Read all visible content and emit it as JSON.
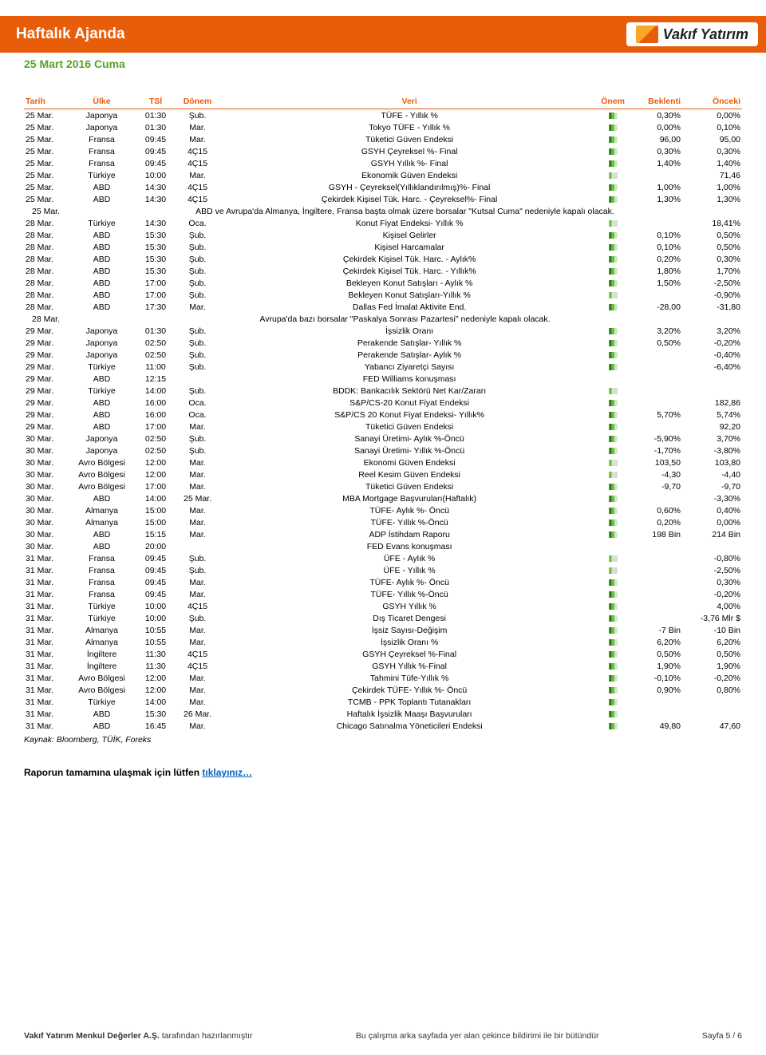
{
  "header": {
    "title": "Haftalık Ajanda",
    "logo_text": "Vakıf Yatırım"
  },
  "sub_date": "25 Mart 2016 Cuma",
  "columns": {
    "tarih": "Tarih",
    "ulke": "Ülke",
    "tsi": "TSİ",
    "donem": "Dönem",
    "veri": "Veri",
    "onem": "Önem",
    "beklenti": "Beklenti",
    "onceki": "Önceki"
  },
  "flag_colors": {
    "low": {
      "a": "#cfe8cf",
      "b": "#d8d8d8",
      "c": "#d8d8d8"
    },
    "mid": {
      "a": "#6fbf3a",
      "b": "#cfe8cf",
      "c": "#d8d8d8"
    },
    "high": {
      "a": "#2e7d20",
      "b": "#6fbf3a",
      "c": "#cfe8cf"
    }
  },
  "rows": [
    {
      "t": "25 Mar.",
      "u": "Japonya",
      "s": "01:30",
      "d": "Şub.",
      "v": "TÜFE - Yıllık %",
      "o": "high",
      "b": "0,30%",
      "p": "0,00%"
    },
    {
      "t": "25 Mar.",
      "u": "Japonya",
      "s": "01:30",
      "d": "Mar.",
      "v": "Tokyo TÜFE - Yıllık %",
      "o": "high",
      "b": "0,00%",
      "p": "0,10%"
    },
    {
      "t": "25 Mar.",
      "u": "Fransa",
      "s": "09:45",
      "d": "Mar.",
      "v": "Tüketici Güven Endeksi",
      "o": "high",
      "b": "96,00",
      "p": "95,00"
    },
    {
      "t": "25 Mar.",
      "u": "Fransa",
      "s": "09:45",
      "d": "4Ç15",
      "v": "GSYH Çeyreksel %- Final",
      "o": "high",
      "b": "0,30%",
      "p": "0,30%"
    },
    {
      "t": "25 Mar.",
      "u": "Fransa",
      "s": "09:45",
      "d": "4Ç15",
      "v": "GSYH Yıllık %- Final",
      "o": "high",
      "b": "1,40%",
      "p": "1,40%"
    },
    {
      "t": "25 Mar.",
      "u": "Türkiye",
      "s": "10:00",
      "d": "Mar.",
      "v": "Ekonomik Güven Endeksi",
      "o": "mid",
      "b": "",
      "p": "71,46"
    },
    {
      "t": "25 Mar.",
      "u": "ABD",
      "s": "14:30",
      "d": "4Ç15",
      "v": "GSYH - Çeyreksel(Yıllıklandırılmış)%- Final",
      "o": "high",
      "b": "1,00%",
      "p": "1,00%"
    },
    {
      "t": "25 Mar.",
      "u": "ABD",
      "s": "14:30",
      "d": "4Ç15",
      "v": "Çekirdek Kişisel Tük. Harc. - Çeyreksel%- Final",
      "o": "high",
      "b": "1,30%",
      "p": "1,30%"
    },
    {
      "type": "note",
      "t": "25 Mar.",
      "text": "ABD ve Avrupa'da Almanya, İngiltere, Fransa başta olmak üzere borsalar \"Kutsal Cuma\" nedeniyle kapalı olacak."
    },
    {
      "t": "28 Mar.",
      "u": "Türkiye",
      "s": "14:30",
      "d": "Oca.",
      "v": "Konut Fiyat Endeksi- Yıllık %",
      "o": "mid",
      "b": "",
      "p": "18,41%"
    },
    {
      "t": "28 Mar.",
      "u": "ABD",
      "s": "15:30",
      "d": "Şub.",
      "v": "Kişisel Gelirler",
      "o": "high",
      "b": "0,10%",
      "p": "0,50%"
    },
    {
      "t": "28 Mar.",
      "u": "ABD",
      "s": "15:30",
      "d": "Şub.",
      "v": "Kişisel Harcamalar",
      "o": "high",
      "b": "0,10%",
      "p": "0,50%"
    },
    {
      "t": "28 Mar.",
      "u": "ABD",
      "s": "15:30",
      "d": "Şub.",
      "v": "Çekirdek Kişisel Tük. Harc. - Aylık%",
      "o": "high",
      "b": "0,20%",
      "p": "0,30%"
    },
    {
      "t": "28 Mar.",
      "u": "ABD",
      "s": "15:30",
      "d": "Şub.",
      "v": "Çekirdek Kişisel Tük. Harc. - Yıllık%",
      "o": "high",
      "b": "1,80%",
      "p": "1,70%"
    },
    {
      "t": "28 Mar.",
      "u": "ABD",
      "s": "17:00",
      "d": "Şub.",
      "v": "Bekleyen Konut Satışları - Aylık %",
      "o": "high",
      "b": "1,50%",
      "p": "-2,50%"
    },
    {
      "t": "28 Mar.",
      "u": "ABD",
      "s": "17:00",
      "d": "Şub.",
      "v": "Bekleyen Konut Satışları-Yıllık %",
      "o": "mid",
      "b": "",
      "p": "-0,90%"
    },
    {
      "t": "28 Mar.",
      "u": "ABD",
      "s": "17:30",
      "d": "Mar.",
      "v": "Dallas Fed İmalat Aktivite End.",
      "o": "high",
      "b": "-28,00",
      "p": "-31,80"
    },
    {
      "type": "note",
      "t": "28 Mar.",
      "text": "Avrupa'da bazı borsalar \"Paskalya Sonrası Pazartesi\" nedeniyle kapalı olacak."
    },
    {
      "t": "29 Mar.",
      "u": "Japonya",
      "s": "01:30",
      "d": "Şub.",
      "v": "İşsizlik Oranı",
      "o": "high",
      "b": "3,20%",
      "p": "3,20%"
    },
    {
      "t": "29 Mar.",
      "u": "Japonya",
      "s": "02:50",
      "d": "Şub.",
      "v": "Perakende Satışlar- Yıllık %",
      "o": "high",
      "b": "0,50%",
      "p": "-0,20%"
    },
    {
      "t": "29 Mar.",
      "u": "Japonya",
      "s": "02:50",
      "d": "Şub.",
      "v": "Perakende Satışlar- Aylık %",
      "o": "high",
      "b": "",
      "p": "-0,40%"
    },
    {
      "t": "29 Mar.",
      "u": "Türkiye",
      "s": "11:00",
      "d": "Şub.",
      "v": "Yabancı Ziyaretçi Sayısı",
      "o": "high",
      "b": "",
      "p": "-6,40%"
    },
    {
      "t": "29 Mar.",
      "u": "ABD",
      "s": "12:15",
      "d": "",
      "v": "FED Williams konuşması",
      "o": "",
      "b": "",
      "p": ""
    },
    {
      "t": "29 Mar.",
      "u": "Türkiye",
      "s": "14:00",
      "d": "Şub.",
      "v": "BDDK: Bankacılık Sektörü Net Kar/Zararı",
      "o": "mid",
      "b": "",
      "p": ""
    },
    {
      "t": "29 Mar.",
      "u": "ABD",
      "s": "16:00",
      "d": "Oca.",
      "v": "S&P/CS-20 Konut Fiyat Endeksi",
      "o": "high",
      "b": "",
      "p": "182,86"
    },
    {
      "t": "29 Mar.",
      "u": "ABD",
      "s": "16:00",
      "d": "Oca.",
      "v": "S&P/CS 20 Konut Fiyat Endeksi- Yıllık%",
      "o": "high",
      "b": "5,70%",
      "p": "5,74%"
    },
    {
      "t": "29 Mar.",
      "u": "ABD",
      "s": "17:00",
      "d": "Mar.",
      "v": "Tüketici Güven Endeksi",
      "o": "high",
      "b": "",
      "p": "92,20"
    },
    {
      "t": "30 Mar.",
      "u": "Japonya",
      "s": "02:50",
      "d": "Şub.",
      "v": "Sanayi Üretimi- Aylık %-Öncü",
      "o": "high",
      "b": "-5,90%",
      "p": "3,70%"
    },
    {
      "t": "30 Mar.",
      "u": "Japonya",
      "s": "02:50",
      "d": "Şub.",
      "v": "Sanayi Üretimi- Yıllık %-Öncü",
      "o": "high",
      "b": "-1,70%",
      "p": "-3,80%"
    },
    {
      "t": "30 Mar.",
      "u": "Avro Bölgesi",
      "s": "12:00",
      "d": "Mar.",
      "v": "Ekonomi Güven Endeksi",
      "o": "mid",
      "b": "103,50",
      "p": "103,80"
    },
    {
      "t": "30 Mar.",
      "u": "Avro Bölgesi",
      "s": "12:00",
      "d": "Mar.",
      "v": "Reel Kesim Güven Endeksi",
      "o": "mid",
      "b": "-4,30",
      "p": "-4,40"
    },
    {
      "t": "30 Mar.",
      "u": "Avro Bölgesi",
      "s": "17:00",
      "d": "Mar.",
      "v": "Tüketici Güven Endeksi",
      "o": "high",
      "b": "-9,70",
      "p": "-9,70"
    },
    {
      "t": "30 Mar.",
      "u": "ABD",
      "s": "14:00",
      "d": "25 Mar.",
      "v": "MBA Mortgage Başvuruları(Haftalık)",
      "o": "high",
      "b": "",
      "p": "-3,30%"
    },
    {
      "t": "30 Mar.",
      "u": "Almanya",
      "s": "15:00",
      "d": "Mar.",
      "v": "TÜFE- Aylık %- Öncü",
      "o": "high",
      "b": "0,60%",
      "p": "0,40%"
    },
    {
      "t": "30 Mar.",
      "u": "Almanya",
      "s": "15:00",
      "d": "Mar.",
      "v": "TÜFE- Yıllık %-Öncü",
      "o": "high",
      "b": "0,20%",
      "p": "0,00%"
    },
    {
      "t": "30 Mar.",
      "u": "ABD",
      "s": "15:15",
      "d": "Mar.",
      "v": "ADP İstihdam Raporu",
      "o": "high",
      "b": "198 Bin",
      "p": "214 Bin"
    },
    {
      "t": "30 Mar.",
      "u": "ABD",
      "s": "20:00",
      "d": "",
      "v": "FED Evans konuşması",
      "o": "",
      "b": "",
      "p": ""
    },
    {
      "t": "31 Mar.",
      "u": "Fransa",
      "s": "09:45",
      "d": "Şub.",
      "v": "ÜFE - Aylık %",
      "o": "mid",
      "b": "",
      "p": "-0,80%"
    },
    {
      "t": "31 Mar.",
      "u": "Fransa",
      "s": "09:45",
      "d": "Şub.",
      "v": "ÜFE - Yıllık %",
      "o": "mid",
      "b": "",
      "p": "-2,50%"
    },
    {
      "t": "31 Mar.",
      "u": "Fransa",
      "s": "09:45",
      "d": "Mar.",
      "v": "TÜFE- Aylık %- Öncü",
      "o": "high",
      "b": "",
      "p": "0,30%"
    },
    {
      "t": "31 Mar.",
      "u": "Fransa",
      "s": "09:45",
      "d": "Mar.",
      "v": "TÜFE- Yıllık %-Öncü",
      "o": "high",
      "b": "",
      "p": "-0,20%"
    },
    {
      "t": "31 Mar.",
      "u": "Türkiye",
      "s": "10:00",
      "d": "4Ç15",
      "v": "GSYH Yıllık %",
      "o": "high",
      "b": "",
      "p": "4,00%"
    },
    {
      "t": "31 Mar.",
      "u": "Türkiye",
      "s": "10:00",
      "d": "Şub.",
      "v": "Dış Ticaret Dengesi",
      "o": "high",
      "b": "",
      "p": "-3,76 Mlr $"
    },
    {
      "t": "31 Mar.",
      "u": "Almanya",
      "s": "10:55",
      "d": "Mar.",
      "v": "İşsiz Sayısı-Değişim",
      "o": "high",
      "b": "-7 Bin",
      "p": "-10 Bin"
    },
    {
      "t": "31 Mar.",
      "u": "Almanya",
      "s": "10:55",
      "d": "Mar.",
      "v": "İşsizlik Oranı %",
      "o": "high",
      "b": "6,20%",
      "p": "6,20%"
    },
    {
      "t": "31 Mar.",
      "u": "İngiltere",
      "s": "11:30",
      "d": "4Ç15",
      "v": "GSYH Çeyreksel %-Final",
      "o": "high",
      "b": "0,50%",
      "p": "0,50%"
    },
    {
      "t": "31 Mar.",
      "u": "İngiltere",
      "s": "11:30",
      "d": "4Ç15",
      "v": "GSYH Yıllık %-Final",
      "o": "high",
      "b": "1,90%",
      "p": "1,90%"
    },
    {
      "t": "31 Mar.",
      "u": "Avro Bölgesi",
      "s": "12:00",
      "d": "Mar.",
      "v": "Tahmini Tüfe-Yıllık %",
      "o": "high",
      "b": "-0,10%",
      "p": "-0,20%"
    },
    {
      "t": "31 Mar.",
      "u": "Avro Bölgesi",
      "s": "12:00",
      "d": "Mar.",
      "v": "Çekirdek TÜFE- Yıllık %- Öncü",
      "o": "high",
      "b": "0,90%",
      "p": "0,80%"
    },
    {
      "t": "31 Mar.",
      "u": "Türkiye",
      "s": "14:00",
      "d": "Mar.",
      "v": "TCMB - PPK Toplantı Tutanakları",
      "o": "high",
      "b": "",
      "p": ""
    },
    {
      "t": "31 Mar.",
      "u": "ABD",
      "s": "15:30",
      "d": "26 Mar.",
      "v": "Haftalık İşsizlik Maaşı Başvuruları",
      "o": "high",
      "b": "",
      "p": ""
    },
    {
      "t": "31 Mar.",
      "u": "ABD",
      "s": "16:45",
      "d": "Mar.",
      "v": "Chicago Satınalma Yöneticileri Endeksi",
      "o": "high",
      "b": "49,80",
      "p": "47,60"
    }
  ],
  "source": "Kaynak: Bloomberg, TÜİK, Foreks",
  "link_note_prefix": "Raporun tamamına ulaşmak için lütfen ",
  "link_note_link": "tıklayınız…",
  "footer": {
    "left_bold": "Vakıf Yatırım Menkul Değerler A.Ş.",
    "left_rest": " tarafından hazırlanmıştır",
    "center": "Bu çalışma arka sayfada yer alan çekince bildirimi ile bir bütündür",
    "right": "Sayfa 5 / 6"
  }
}
